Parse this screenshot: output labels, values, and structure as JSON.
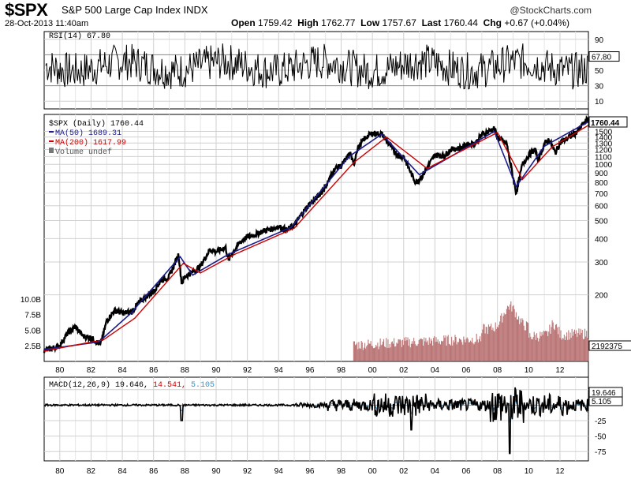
{
  "header": {
    "symbol": "$SPX",
    "name": "S&P 500 Large Cap Index",
    "exchange": "INDX",
    "datetime": "28-Oct-2013 11:40am",
    "open_label": "Open",
    "open": "1759.42",
    "high_label": "High",
    "high": "1762.77",
    "low_label": "Low",
    "low": "1757.67",
    "last_label": "Last",
    "last": "1760.44",
    "chg_label": "Chg",
    "chg": "+0.67 (+0.04%)",
    "credit": "@StockCharts.com"
  },
  "colors": {
    "price": "#000000",
    "ma50": "#1a1a8c",
    "ma200": "#cc0000",
    "volume": "#b06060",
    "macd_signal": "#cc0000",
    "macd_hist": "#3b8fc4",
    "grid": "#d0d0d0"
  },
  "chart_data": [
    {
      "type": "line",
      "panel": "RSI",
      "legend": "RSI(14) 67.80",
      "last_value_label": "67.80",
      "y_ticks": [
        "90",
        "70",
        "50",
        "30",
        "10"
      ],
      "y_values": [
        90,
        70,
        50,
        30,
        10
      ],
      "ylim": [
        0,
        100
      ],
      "grid": true
    },
    {
      "type": "line",
      "panel": "Price",
      "title": "$SPX (Daily) 1760.44",
      "scale": "log",
      "last_value_label": "1760.44",
      "series": [
        {
          "name": "$SPX (Daily) 1760.44",
          "x": [
            1979.0,
            1980.0,
            1980.5,
            1981.0,
            1981.5,
            1982.0,
            1982.6,
            1983.0,
            1983.5,
            1984.0,
            1984.6,
            1985.0,
            1985.5,
            1986.0,
            1986.5,
            1987.0,
            1987.6,
            1987.8,
            1988.0,
            1988.5,
            1989.0,
            1989.6,
            1990.0,
            1990.6,
            1990.8,
            1991.0,
            1991.5,
            1992.0,
            1992.5,
            1993.0,
            1993.5,
            1994.0,
            1994.5,
            1995.0,
            1995.5,
            1996.0,
            1996.5,
            1997.0,
            1997.6,
            1998.0,
            1998.6,
            1998.8,
            1999.0,
            1999.5,
            2000.0,
            2000.6,
            2001.0,
            2001.7,
            2002.0,
            2002.6,
            2002.8,
            2003.2,
            2003.6,
            2004.0,
            2004.6,
            2005.0,
            2005.6,
            2006.0,
            2006.6,
            2007.0,
            2007.8,
            2008.0,
            2008.6,
            2009.0,
            2009.2,
            2009.6,
            2010.0,
            2010.4,
            2010.6,
            2011.0,
            2011.3,
            2011.7,
            2012.0,
            2012.6,
            2013.0,
            2013.5,
            2013.82
          ],
          "values": [
            100,
            107,
            125,
            135,
            120,
            118,
            108,
            145,
            165,
            160,
            162,
            180,
            195,
            210,
            240,
            250,
            330,
            230,
            250,
            265,
            285,
            350,
            340,
            360,
            305,
            330,
            380,
            410,
            420,
            440,
            450,
            465,
            445,
            470,
            545,
            615,
            670,
            760,
            950,
            980,
            1150,
            980,
            1190,
            1380,
            1470,
            1450,
            1300,
            1100,
            1100,
            850,
            800,
            870,
            990,
            1120,
            1110,
            1200,
            1220,
            1270,
            1300,
            1440,
            1560,
            1400,
            1280,
            850,
            700,
            1000,
            1120,
            1200,
            1050,
            1280,
            1360,
            1150,
            1300,
            1400,
            1470,
            1650,
            1760
          ]
        },
        {
          "name": "MA(50) 1689.31",
          "values_label": "MA(50) 1689.31",
          "x": [
            1979.0,
            1982.5,
            1984.5,
            1987.7,
            1988.5,
            1990.8,
            1994.8,
            1998.5,
            2000.6,
            2003.0,
            2007.8,
            2009.2,
            2011.0,
            2013.82
          ],
          "values": [
            102,
            112,
            158,
            320,
            255,
            330,
            460,
            1100,
            1450,
            880,
            1500,
            760,
            1250,
            1689.31
          ]
        },
        {
          "name": "MA(200) 1617.99",
          "x": [
            1979.0,
            1982.8,
            1984.8,
            1987.9,
            1989.0,
            1991.2,
            1995.0,
            1998.8,
            2000.9,
            2003.5,
            2008.0,
            2009.6,
            2011.5,
            2013.82
          ],
          "values": [
            100,
            115,
            150,
            295,
            262,
            330,
            455,
            1020,
            1400,
            950,
            1480,
            830,
            1240,
            1617.99
          ]
        }
      ],
      "y_ticks": [
        "1500",
        "1400",
        "1300",
        "1200",
        "1100",
        "1000",
        "900",
        "800",
        "700",
        "600",
        "500",
        "400",
        "300",
        "200"
      ],
      "y_values": [
        1500,
        1400,
        1300,
        1200,
        1100,
        1000,
        900,
        800,
        700,
        600,
        500,
        400,
        300,
        200
      ],
      "grid": true
    },
    {
      "type": "bar",
      "panel": "Volume",
      "legend": "Volume undef",
      "last_value_label": "2192375",
      "y_ticks": [
        "10.0B",
        "7.5B",
        "5.0B",
        "2.5B"
      ],
      "y_values": [
        10.0,
        7.5,
        5.0,
        2.5
      ],
      "x_range": [
        1998.8,
        2013.82
      ],
      "ylim": [
        0,
        12
      ],
      "units": "B"
    },
    {
      "type": "line",
      "panel": "MACD",
      "legend_name": "MACD(12,26,9)",
      "legend_macd": "19.646,",
      "legend_signal": "14.541,",
      "legend_hist": "5.105",
      "last_macd_label": "19.646",
      "last_hist_label": "5.105",
      "y_ticks": [
        "25",
        "-25",
        "-50",
        "-75"
      ],
      "y_values": [
        25,
        -25,
        -50,
        -75
      ],
      "ylim": [
        -90,
        45
      ],
      "grid": true
    }
  ],
  "x_axis": {
    "tick_labels": [
      "80",
      "82",
      "84",
      "86",
      "88",
      "90",
      "92",
      "94",
      "96",
      "98",
      "00",
      "02",
      "04",
      "06",
      "08",
      "10",
      "12"
    ],
    "tick_years": [
      1980,
      1982,
      1984,
      1986,
      1988,
      1990,
      1992,
      1994,
      1996,
      1998,
      2000,
      2002,
      2004,
      2006,
      2008,
      2010,
      2012
    ],
    "range": [
      1979.0,
      2013.82
    ]
  }
}
